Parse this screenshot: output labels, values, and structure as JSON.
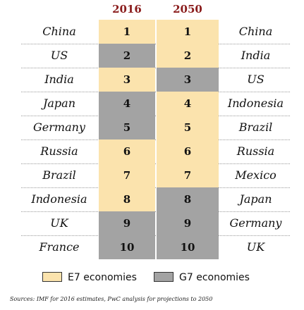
{
  "chart_data": {
    "type": "table",
    "columns": [
      "2016",
      "2050"
    ],
    "ranks": [
      1,
      2,
      3,
      4,
      5,
      6,
      7,
      8,
      9,
      10
    ],
    "rows": [
      {
        "left": "China",
        "rank": "1",
        "right": "China",
        "cat2016": "e7",
        "cat2050": "e7"
      },
      {
        "left": "US",
        "rank": "2",
        "right": "India",
        "cat2016": "g7",
        "cat2050": "e7"
      },
      {
        "left": "India",
        "rank": "3",
        "right": "US",
        "cat2016": "e7",
        "cat2050": "g7"
      },
      {
        "left": "Japan",
        "rank": "4",
        "right": "Indonesia",
        "cat2016": "g7",
        "cat2050": "e7"
      },
      {
        "left": "Germany",
        "rank": "5",
        "right": "Brazil",
        "cat2016": "g7",
        "cat2050": "e7"
      },
      {
        "left": "Russia",
        "rank": "6",
        "right": "Russia",
        "cat2016": "e7",
        "cat2050": "e7"
      },
      {
        "left": "Brazil",
        "rank": "7",
        "right": "Mexico",
        "cat2016": "e7",
        "cat2050": "e7"
      },
      {
        "left": "Indonesia",
        "rank": "8",
        "right": "Japan",
        "cat2016": "e7",
        "cat2050": "g7"
      },
      {
        "left": "UK",
        "rank": "9",
        "right": "Germany",
        "cat2016": "g7",
        "cat2050": "g7"
      },
      {
        "left": "France",
        "rank": "10",
        "right": "UK",
        "cat2016": "g7",
        "cat2050": "g7"
      }
    ],
    "legend": [
      {
        "label": "E7 economies",
        "key": "e7"
      },
      {
        "label": "G7 economies",
        "key": "g7"
      }
    ],
    "source": "Sources: IMF for 2016 estimates, PwC analysis for projections to 2050"
  },
  "colors": {
    "e7": "#fbe3ad",
    "g7": "#a3a3a3",
    "header_text": "#8a1c1c"
  }
}
